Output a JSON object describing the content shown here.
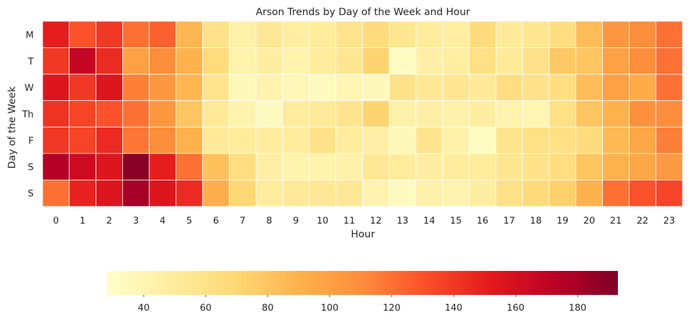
{
  "chart_data": {
    "type": "heatmap",
    "title": "Arson Trends by Day of the Week and Hour",
    "xlabel": "Hour",
    "ylabel": "Day of the Week",
    "x_categories": [
      "0",
      "1",
      "2",
      "3",
      "4",
      "5",
      "6",
      "7",
      "8",
      "9",
      "10",
      "11",
      "12",
      "13",
      "14",
      "15",
      "16",
      "17",
      "18",
      "19",
      "20",
      "21",
      "22",
      "23"
    ],
    "y_categories": [
      "M",
      "T",
      "W",
      "Th",
      "F",
      "S",
      "S"
    ],
    "values": [
      [
        150,
        130,
        140,
        120,
        125,
        88,
        60,
        44,
        54,
        48,
        50,
        58,
        66,
        56,
        50,
        48,
        66,
        52,
        56,
        64,
        84,
        105,
        110,
        120
      ],
      [
        140,
        168,
        145,
        100,
        110,
        90,
        66,
        42,
        48,
        42,
        50,
        56,
        72,
        32,
        46,
        48,
        62,
        52,
        60,
        78,
        80,
        100,
        110,
        120
      ],
      [
        155,
        140,
        155,
        115,
        105,
        88,
        58,
        36,
        42,
        38,
        34,
        40,
        36,
        60,
        54,
        56,
        52,
        64,
        60,
        64,
        84,
        100,
        94,
        120
      ],
      [
        142,
        135,
        130,
        120,
        105,
        80,
        52,
        42,
        34,
        50,
        52,
        58,
        72,
        44,
        46,
        44,
        48,
        42,
        40,
        62,
        80,
        90,
        108,
        110
      ],
      [
        140,
        135,
        145,
        118,
        110,
        90,
        52,
        50,
        50,
        50,
        60,
        50,
        46,
        36,
        58,
        44,
        32,
        58,
        62,
        62,
        66,
        86,
        96,
        115
      ],
      [
        175,
        164,
        155,
        190,
        150,
        120,
        82,
        64,
        46,
        42,
        42,
        44,
        54,
        50,
        48,
        50,
        50,
        56,
        60,
        64,
        80,
        90,
        96,
        104
      ],
      [
        120,
        148,
        155,
        180,
        155,
        145,
        92,
        70,
        50,
        52,
        54,
        54,
        42,
        34,
        44,
        42,
        48,
        62,
        68,
        74,
        90,
        120,
        130,
        135
      ]
    ],
    "colorbar": {
      "min": 28,
      "max": 193,
      "ticks": [
        "40",
        "60",
        "80",
        "100",
        "120",
        "140",
        "160",
        "180"
      ],
      "colormap": "YlOrRd",
      "stops": [
        "#ffffcc",
        "#ffeda0",
        "#fed976",
        "#feb24c",
        "#fd8d3c",
        "#fc4e2a",
        "#e31a1c",
        "#bd0026",
        "#800026"
      ]
    },
    "grid": false,
    "legend": "colorbar-bottom"
  }
}
